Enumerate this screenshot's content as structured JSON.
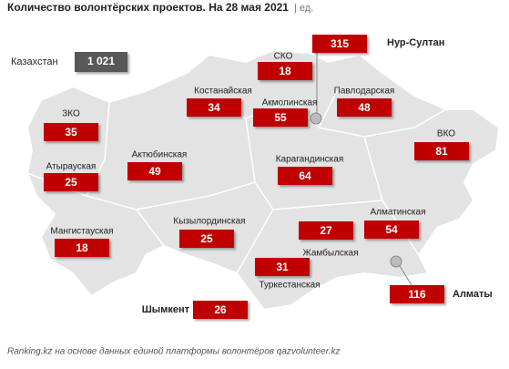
{
  "title": "Количество волонтёрских проектов. На 28 мая 2021",
  "unit": "| ед.",
  "total": {
    "name": "Казахстан",
    "value": {
      "value": 1021,
      "label": "1 021"
    }
  },
  "regions": [
    {
      "name": "ЗКО",
      "value": 35
    },
    {
      "name": "Атырауская",
      "value": 25
    },
    {
      "name": "Мангистауская",
      "value": 18
    },
    {
      "name": "Актюбинская",
      "value": 49
    },
    {
      "name": "Костанайская",
      "value": 34
    },
    {
      "name": "СКО",
      "value": 18
    },
    {
      "name": "Акмолинская",
      "value": 55
    },
    {
      "name": "Павлодарская",
      "value": 48
    },
    {
      "name": "ВКО",
      "value": 81
    },
    {
      "name": "Карагандинская",
      "value": 64
    },
    {
      "name": "Кызылординская",
      "value": 25
    },
    {
      "name": "Жамбылская",
      "value": 27
    },
    {
      "name": "Алматинская",
      "value": 54
    },
    {
      "name": "Туркестанская",
      "value": 31
    }
  ],
  "cities": [
    {
      "name": "Нур-Султан",
      "value": 315
    },
    {
      "name": "Алматы",
      "value": 116
    },
    {
      "name": "Шымкент",
      "value": 26
    }
  ],
  "source": "Ranking.kz на основе данных единой платформы волонтёров qazvolunteer.kz"
}
